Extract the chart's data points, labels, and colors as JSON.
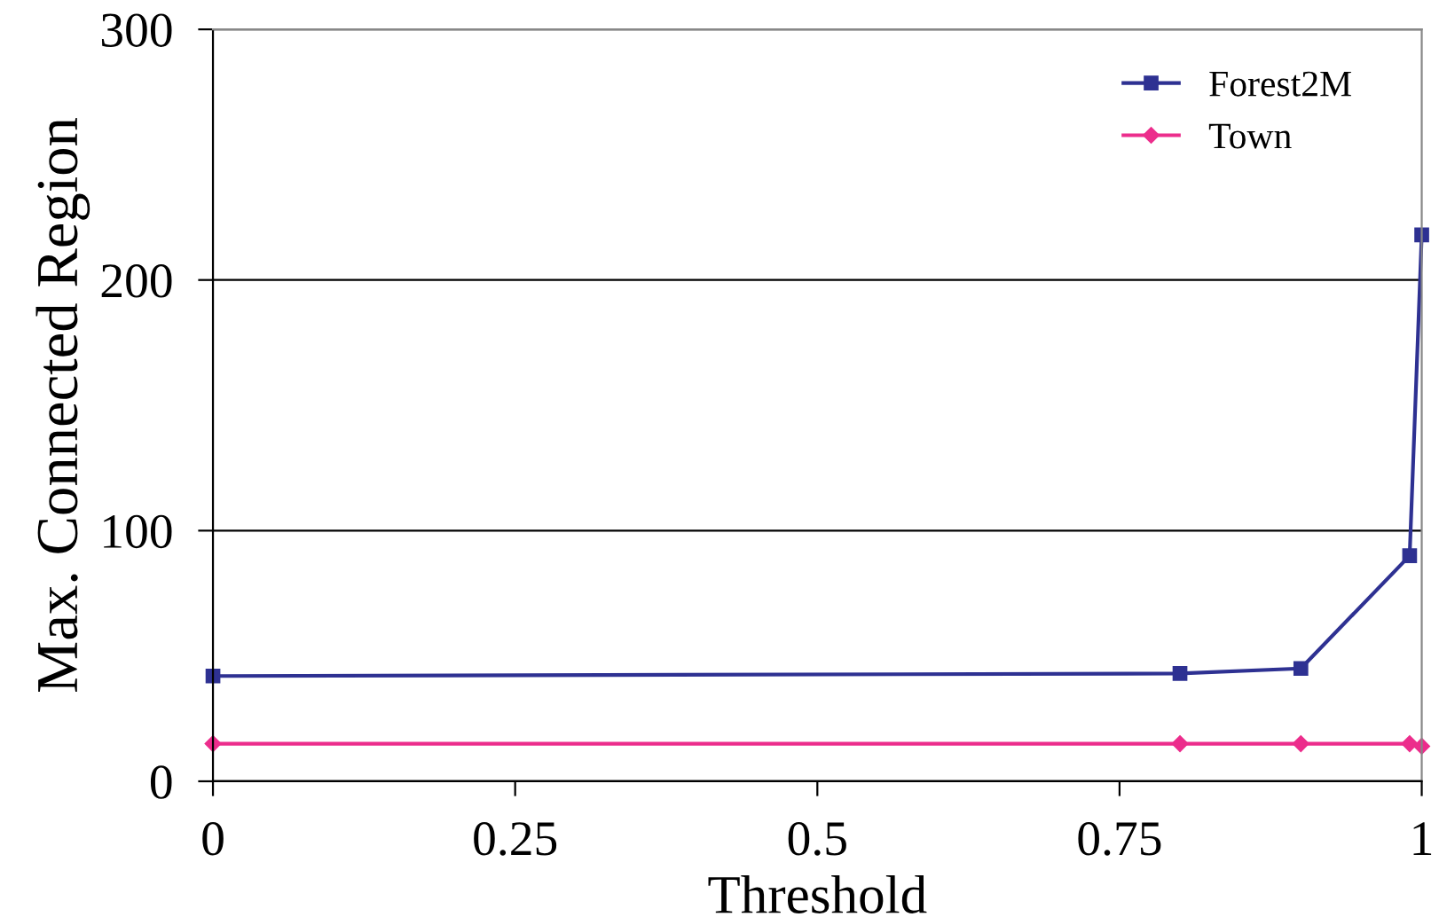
{
  "chart_data": {
    "type": "line",
    "xlabel": "Threshold",
    "ylabel": "Max. Connected Region",
    "x": [
      0,
      0.8,
      0.9,
      0.99,
      1
    ],
    "series": [
      {
        "name": "Forest2M",
        "color": "#2e3192",
        "values": [
          42,
          43,
          45,
          90,
          218
        ],
        "marker": "square"
      },
      {
        "name": "Town",
        "color": "#ec2d8c",
        "values": [
          15,
          15,
          15,
          15,
          14
        ],
        "marker": "diamond"
      }
    ],
    "xlim": [
      0,
      1
    ],
    "xticks": [
      0,
      0.25,
      0.5,
      0.75,
      1
    ],
    "ylim": [
      0,
      300
    ],
    "yticks": [
      0,
      100,
      200,
      300
    ],
    "grid": "y",
    "legend": "top right"
  }
}
